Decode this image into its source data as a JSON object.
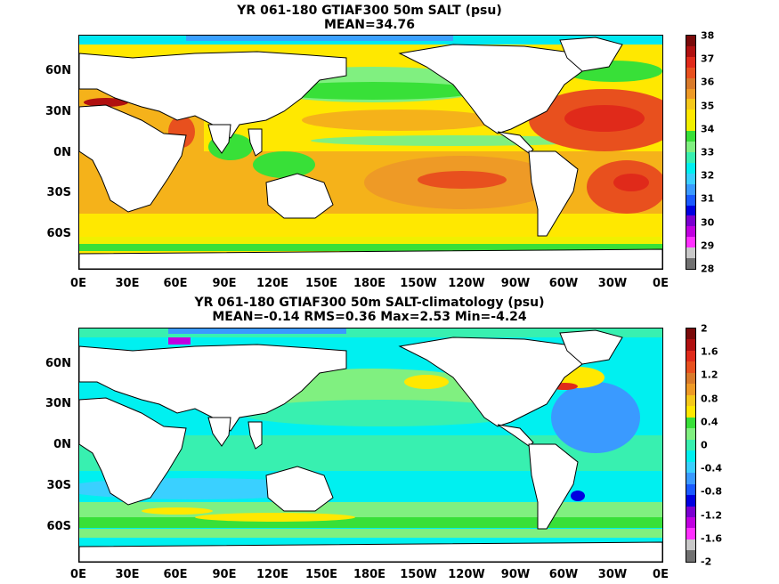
{
  "panels": [
    {
      "title_line1": "YR 061-180 GTIAF300 50m SALT (psu)",
      "title_line2": "MEAN=34.76",
      "colorbar_labels": [
        "38",
        "37",
        "36",
        "35",
        "34",
        "33",
        "32",
        "31",
        "30",
        "29",
        "28"
      ],
      "colorbar_colors": [
        "#7a0a0a",
        "#b01010",
        "#e02a1a",
        "#e8501e",
        "#d97a2a",
        "#ee9a26",
        "#f5c81a",
        "#ffe800",
        "#f0f000",
        "#38e038",
        "#80f080",
        "#38f0b0",
        "#00f0f0",
        "#3ad0ff",
        "#3a9aff",
        "#1a5aff",
        "#0000e0",
        "#7a00d0",
        "#c000e0",
        "#ff30ff",
        "#c8c8c8",
        "#707070"
      ]
    },
    {
      "title_line1": "YR 061-180 GTIAF300 50m SALT-climatology (psu)",
      "title_line2": "MEAN=-0.14   RMS=0.36   Max=2.53   Min=-4.24",
      "colorbar_labels": [
        "2",
        "1.6",
        "1.2",
        "0.8",
        "0.4",
        "0",
        "-0.4",
        "-0.8",
        "-1.2",
        "-1.6",
        "-2"
      ],
      "colorbar_colors": [
        "#7a0a0a",
        "#b01010",
        "#e02a1a",
        "#e8501e",
        "#d97a2a",
        "#ee9a26",
        "#f5c81a",
        "#ffe800",
        "#38e038",
        "#80f080",
        "#38f0b0",
        "#00f0f0",
        "#3ad0ff",
        "#3a9aff",
        "#1a5aff",
        "#0000e0",
        "#7a00d0",
        "#c000e0",
        "#ff30ff",
        "#c8c8c8",
        "#707070"
      ]
    }
  ],
  "x_tick_labels": [
    "0E",
    "30E",
    "60E",
    "90E",
    "120E",
    "150E",
    "180E",
    "150W",
    "120W",
    "90W",
    "60W",
    "30W",
    "0E"
  ],
  "y_tick_labels": [
    "60N",
    "30N",
    "0N",
    "30S",
    "60S"
  ]
}
